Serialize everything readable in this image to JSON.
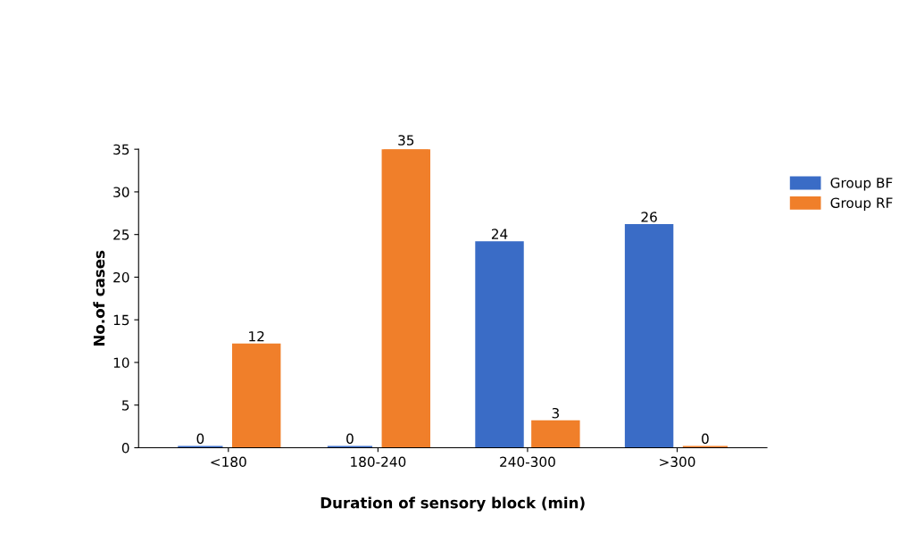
{
  "chart_data": {
    "type": "bar",
    "xlabel": "Duration of sensory block (min)",
    "ylabel": "No.of cases",
    "categories": [
      "<180",
      "180-240",
      "240-300",
      ">300"
    ],
    "series": [
      {
        "name": "Group BF",
        "color": "#3a6cc6",
        "values": [
          0,
          0,
          24,
          26
        ]
      },
      {
        "name": "Group RF",
        "color": "#f07f2a",
        "values": [
          12,
          35,
          3,
          0
        ]
      }
    ],
    "ylim": [
      0,
      35
    ],
    "yticks": [
      0,
      5,
      10,
      15,
      20,
      25,
      30,
      35
    ],
    "data_labels": true,
    "legend": "right",
    "grid": false
  }
}
